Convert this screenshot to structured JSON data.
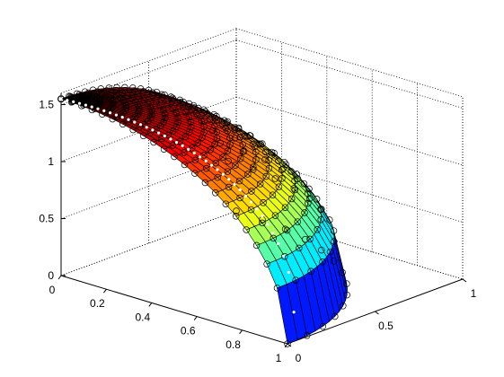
{
  "chart_data": {
    "type": "surface",
    "title": "",
    "xlabel": "",
    "ylabel": "",
    "zlabel": "",
    "xlim": [
      0,
      1
    ],
    "ylim": [
      0,
      1
    ],
    "zlim": [
      0,
      1.6
    ],
    "x_ticks": [
      "0",
      "0.2",
      "0.4",
      "0.6",
      "0.8",
      "1"
    ],
    "x_tick_values": [
      0,
      0.2,
      0.4,
      0.6,
      0.8,
      1
    ],
    "y_ticks": [
      "0",
      "0.5",
      "1"
    ],
    "y_tick_values": [
      0,
      0.5,
      1
    ],
    "z_ticks": [
      "0",
      "0.5",
      "1",
      "1.5"
    ],
    "z_tick_values": [
      0,
      0.5,
      1,
      1.5
    ],
    "surface": {
      "shape": "quarter dome",
      "apex_height": 1.55,
      "colormap": "jet",
      "edge_color": "#000000",
      "markers": "open circles at grid nodes",
      "highlighted_path": "white dotted meridian curve"
    },
    "grid": true,
    "box": "dotted"
  }
}
